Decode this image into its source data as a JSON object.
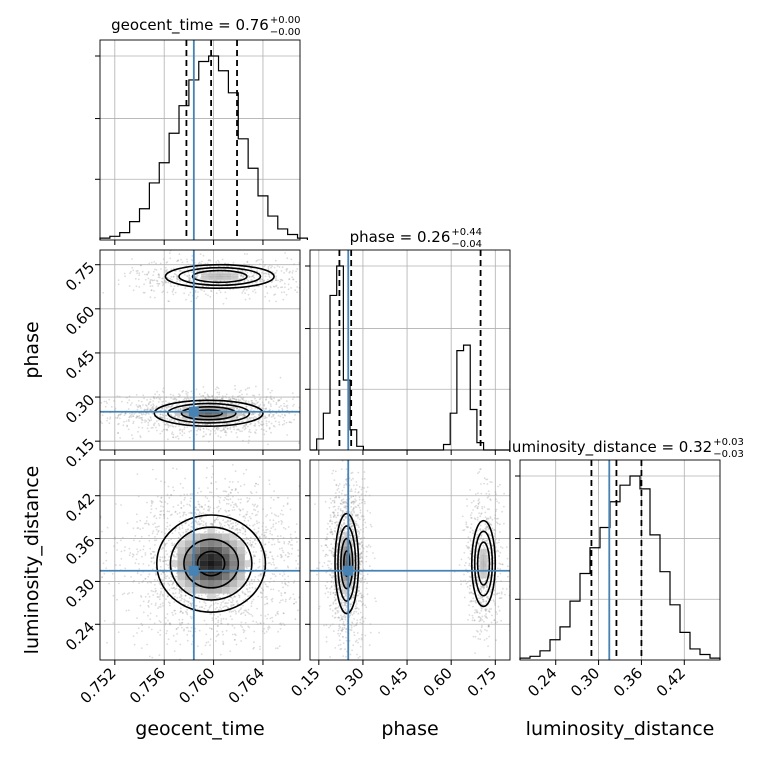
{
  "chart_data": {
    "type": "corner",
    "parameters": [
      "geocent_time",
      "phase",
      "luminosity_distance"
    ],
    "truths": {
      "geocent_time": 0.7584,
      "phase": 0.25,
      "luminosity_distance": 0.315
    },
    "colors": {
      "truth": "#4682b4",
      "hist": "#000000",
      "grid": "#b0b0b0",
      "points": "#9a9a9a"
    },
    "grid": true,
    "titles": [
      {
        "param": "geocent_time",
        "label": "geocent_time = 0.76",
        "plus": "+0.00",
        "minus": "−0.00"
      },
      {
        "param": "phase",
        "label": "phase = 0.26",
        "plus": "+0.44",
        "minus": "−0.04"
      },
      {
        "param": "luminosity_distance",
        "label": "luminosity_distance = 0.32",
        "plus": "+0.03",
        "minus": "−0.03"
      }
    ],
    "axes": {
      "geocent_time": {
        "range": [
          0.7508,
          0.767
        ],
        "ticks": [
          0.752,
          0.756,
          0.76,
          0.764
        ],
        "tick_labels": [
          "0.752",
          "0.756",
          "0.760",
          "0.764"
        ]
      },
      "phase": {
        "range": [
          0.12,
          0.8
        ],
        "ticks": [
          0.15,
          0.3,
          0.45,
          0.6,
          0.75
        ],
        "tick_labels": [
          "0.15",
          "0.30",
          "0.45",
          "0.60",
          "0.75"
        ]
      },
      "luminosity_distance": {
        "range": [
          0.19,
          0.47
        ],
        "ticks": [
          0.24,
          0.3,
          0.36,
          0.42
        ],
        "tick_labels": [
          "0.24",
          "0.30",
          "0.36",
          "0.42"
        ]
      }
    },
    "axis_labels": {
      "geocent_time": "geocent_time",
      "phase": "phase",
      "luminosity_distance": "luminosity_distance"
    },
    "quantiles": {
      "geocent_time": [
        0.7578,
        0.7598,
        0.7619
      ],
      "phase": [
        0.22,
        0.26,
        0.7
      ],
      "luminosity_distance": [
        0.29,
        0.325,
        0.36
      ]
    },
    "histograms": {
      "geocent_time": {
        "start": 0.7508,
        "width": 0.0008,
        "counts": [
          1,
          2,
          4,
          10,
          17,
          31,
          42,
          58,
          73,
          87,
          97,
          100,
          92,
          80,
          55,
          39,
          24,
          13,
          6,
          3,
          1
        ]
      },
      "phase": {
        "start": 0.12,
        "width": 0.0227,
        "counts": [
          0,
          6,
          20,
          84,
          100,
          38,
          11,
          2,
          0,
          0,
          0,
          0,
          0,
          0,
          0,
          0,
          0,
          0,
          0,
          0,
          3,
          20,
          54,
          57,
          22,
          4,
          0,
          0,
          0,
          0
        ]
      },
      "luminosity_distance": {
        "start": 0.19,
        "width": 0.014,
        "counts": [
          1,
          2,
          5,
          11,
          18,
          32,
          47,
          61,
          72,
          86,
          95,
          100,
          93,
          68,
          48,
          30,
          15,
          6,
          3,
          1
        ]
      }
    },
    "modes_2d": {
      "phase_vs_geocent_time": [
        {
          "cx": 0.7596,
          "cy": 0.245,
          "sx": 0.0022,
          "sy": 0.022,
          "weight": 0.68
        },
        {
          "cx": 0.7605,
          "cy": 0.71,
          "sx": 0.0022,
          "sy": 0.02,
          "weight": 0.32
        }
      ],
      "luminosity_distance_vs_geocent_time": [
        {
          "cx": 0.7598,
          "cy": 0.325,
          "sx": 0.0022,
          "sy": 0.034,
          "weight": 1.0
        }
      ],
      "luminosity_distance_vs_phase": [
        {
          "cx": 0.245,
          "cy": 0.325,
          "sx": 0.02,
          "sy": 0.035,
          "weight": 0.68
        },
        {
          "cx": 0.71,
          "cy": 0.325,
          "sx": 0.02,
          "sy": 0.03,
          "weight": 0.32
        }
      ]
    }
  }
}
